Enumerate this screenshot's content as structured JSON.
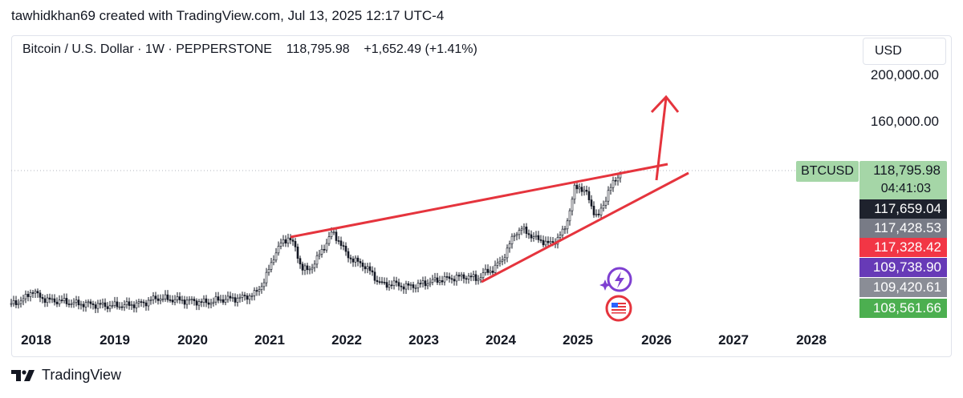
{
  "credit": "tawhidkhan69 created with TradingView.com, Jul 13, 2025 12:17 UTC-4",
  "header": {
    "instrument": "Bitcoin / U.S. Dollar",
    "interval": "1W",
    "exchange": "PEPPERSTONE",
    "last": "118,795.98",
    "change": "+1,652.49 (+1.41%)"
  },
  "currency_button": "USD",
  "symbol_tag": "BTCUSD",
  "current_price": "118,795.98",
  "countdown": "04:41:03",
  "price_levels": [
    {
      "value": "117,659.04",
      "color": "#1e222d"
    },
    {
      "value": "117,428.53",
      "color": "#787b86"
    },
    {
      "value": "117,328.42",
      "color": "#f23645"
    },
    {
      "value": "109,738.90",
      "color": "#673ab7"
    },
    {
      "value": "109,420.61",
      "color": "#8a8d96"
    },
    {
      "value": "108,561.66",
      "color": "#4caf50"
    }
  ],
  "footer_brand": "TradingView",
  "colors": {
    "trendline": "#e5343d",
    "candles": "#131722",
    "accent_green": "#a5d6a7"
  },
  "chart_data": {
    "type": "candlestick",
    "price_axis": {
      "ticks": [
        "200,000.00",
        "160,000.00"
      ],
      "scale": "log"
    },
    "time_axis": {
      "ticks": [
        "2018",
        "2019",
        "2020",
        "2021",
        "2022",
        "2023",
        "2024",
        "2025",
        "2026",
        "2027",
        "2028"
      ]
    },
    "series": [
      {
        "x": [
          "2018",
          "2019",
          "2020",
          "2021",
          "2022",
          "2023",
          "2024",
          "2025"
        ],
        "values": [
          11000,
          3800,
          7200,
          29000,
          47000,
          16500,
          44000,
          96000
        ]
      }
    ],
    "last_close": 118795.98,
    "annotations": [
      "rising trendline from 2021 high",
      "rising trendline from 2023",
      "up arrow projection toward 2026"
    ]
  }
}
